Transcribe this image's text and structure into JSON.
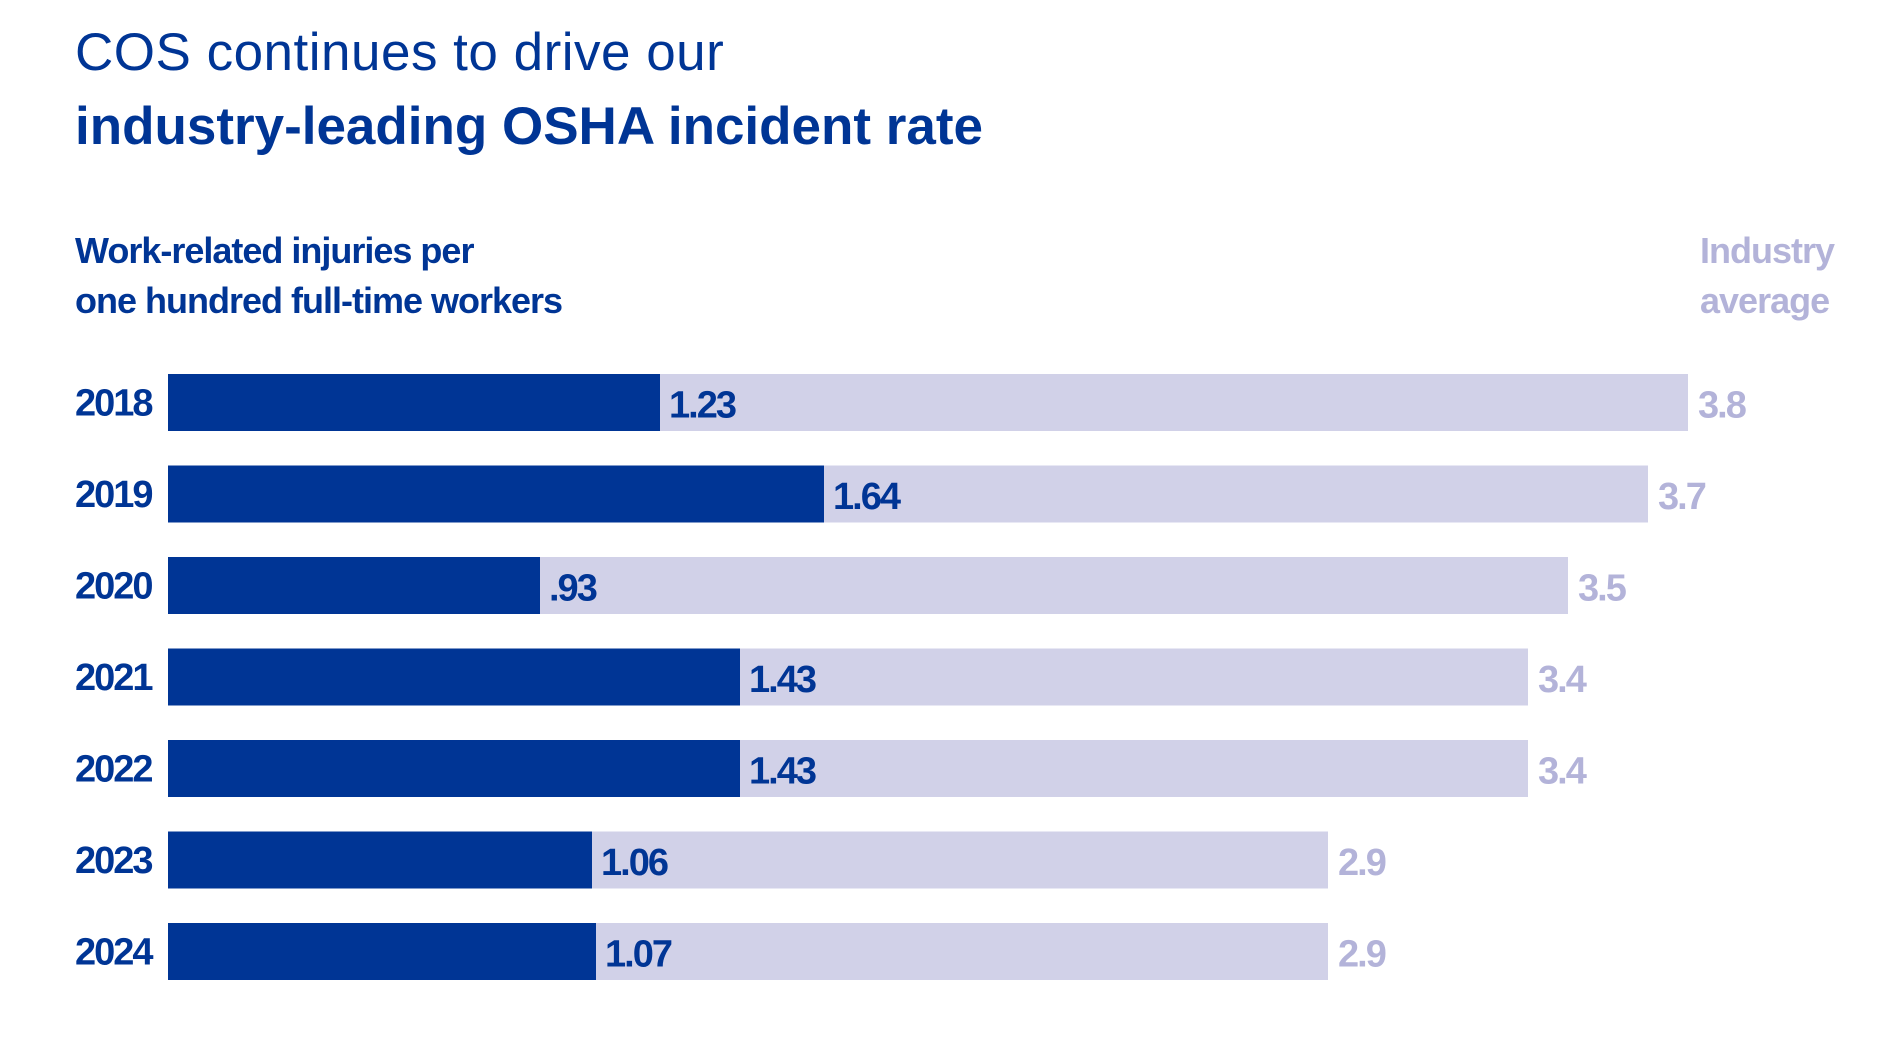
{
  "title_line1": "COS continues to drive our",
  "title_line2": "industry-leading OSHA incident rate",
  "subtitle_line1": "Work-related injuries per",
  "subtitle_line2": "one hundred full-time workers",
  "industry_label_line1": "Industry",
  "industry_label_line2": "average",
  "colors": {
    "cos": "#003595",
    "industry_bar": "#d1d1e8",
    "industry_text": "#b3b3d9"
  },
  "chart_data": {
    "type": "bar",
    "orientation": "horizontal",
    "categories": [
      "2018",
      "2019",
      "2020",
      "2021",
      "2022",
      "2023",
      "2024"
    ],
    "series": [
      {
        "name": "Work-related injuries per one hundred full-time workers",
        "values": [
          1.23,
          1.64,
          0.93,
          1.43,
          1.43,
          1.06,
          1.07
        ],
        "labels": [
          "1.23",
          "1.64",
          ".93",
          "1.43",
          "1.43",
          "1.06",
          "1.07"
        ]
      },
      {
        "name": "Industry average",
        "values": [
          3.8,
          3.7,
          3.5,
          3.4,
          3.4,
          2.9,
          2.9
        ],
        "labels": [
          "3.8",
          "3.7",
          "3.5",
          "3.4",
          "3.4",
          "2.9",
          "2.9"
        ]
      }
    ],
    "xlim": [
      0,
      3.8
    ],
    "grid": false,
    "legend": "top-right"
  }
}
